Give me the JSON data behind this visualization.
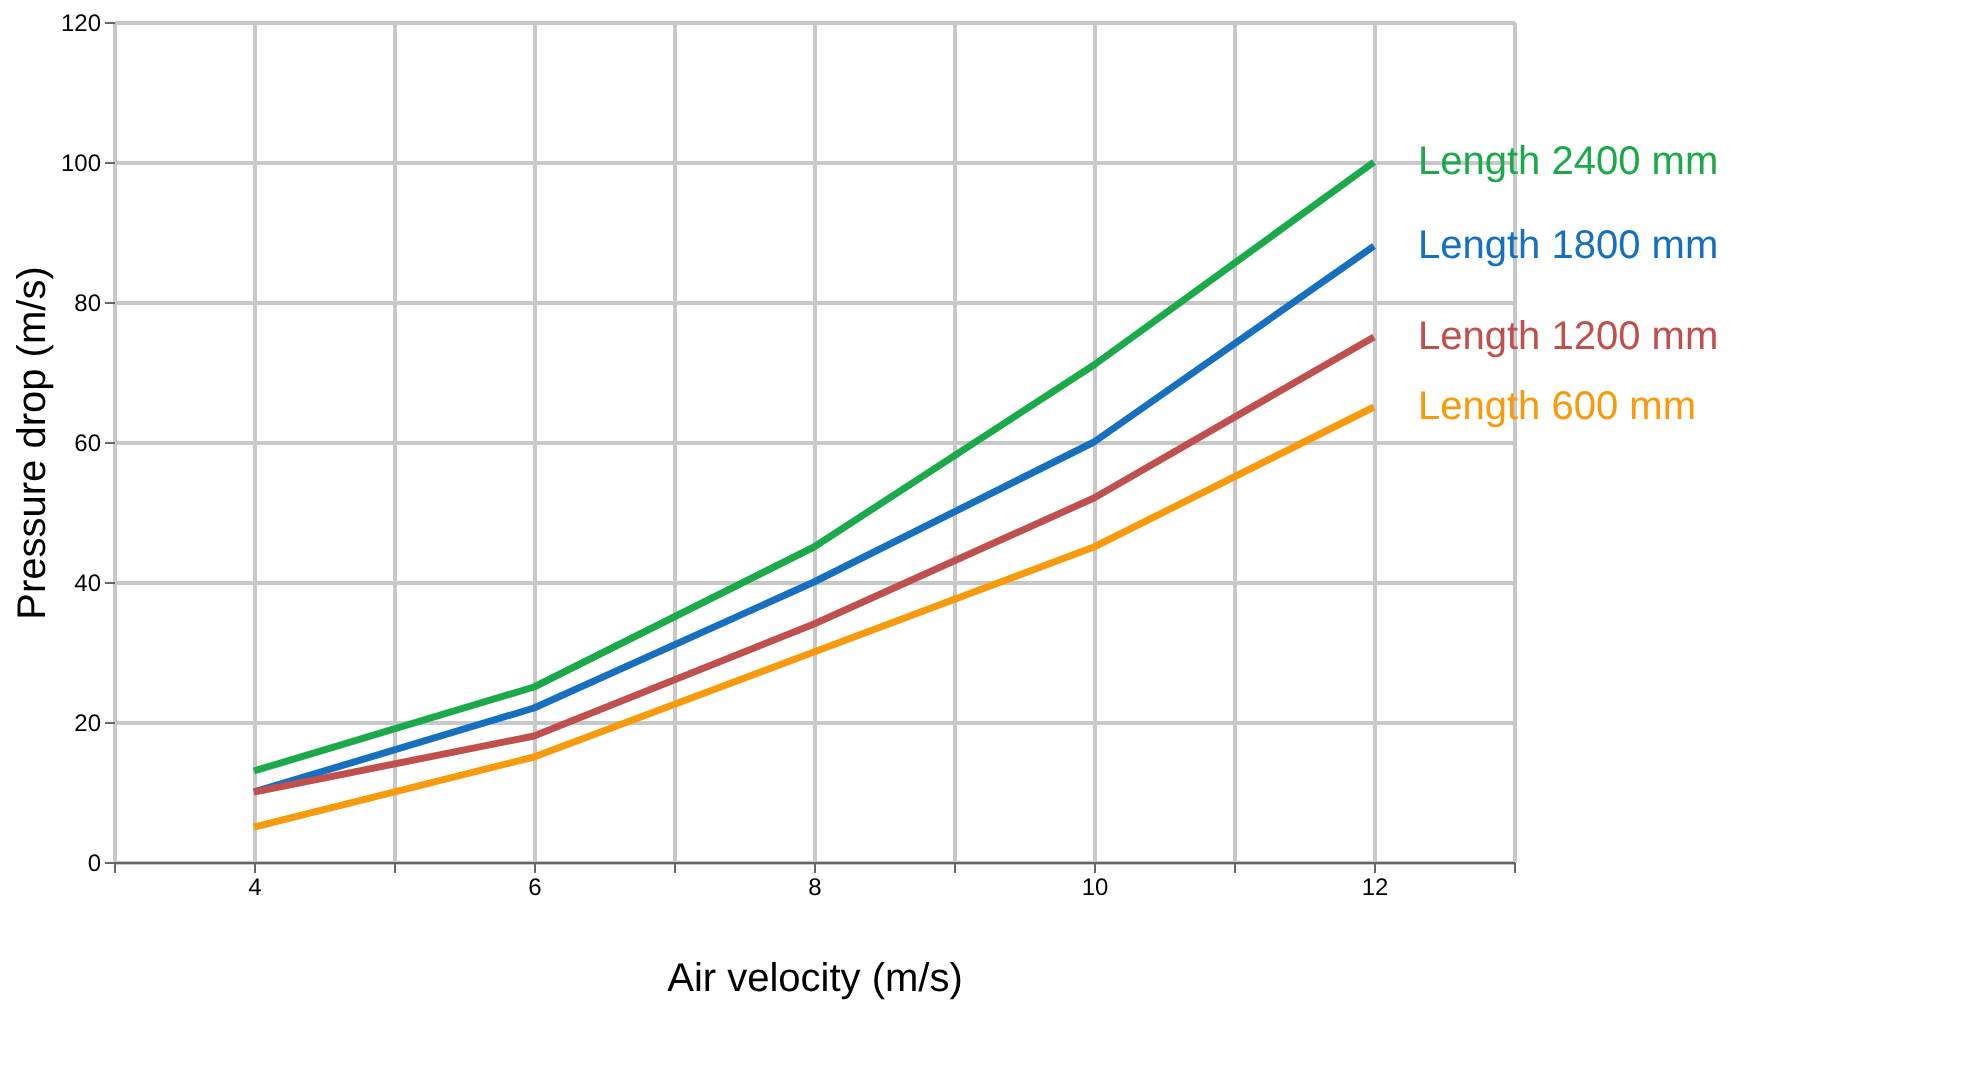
{
  "chart_data": {
    "type": "line",
    "xlabel": "Air velocity (m/s)",
    "ylabel": "Pressure drop (m/s)",
    "x": [
      4,
      6,
      8,
      10,
      12
    ],
    "xlim": [
      3,
      13
    ],
    "xticks": [
      {
        "value": 3,
        "label": null
      },
      4,
      {
        "value": 5,
        "label": null
      },
      6,
      {
        "value": 7,
        "label": null
      },
      8,
      {
        "value": 9,
        "label": null
      },
      10,
      {
        "value": 11,
        "label": null
      },
      12,
      {
        "value": 13,
        "label": null
      }
    ],
    "ylim": [
      0,
      120
    ],
    "yticks": [
      0,
      20,
      40,
      60,
      80,
      100,
      120
    ],
    "grid": true,
    "legend": "right",
    "marker": "none",
    "line_style": "solid",
    "series": [
      {
        "name": "Length 2400 mm",
        "color": "#1aaa4a",
        "values": [
          13,
          25,
          45,
          71,
          100
        ]
      },
      {
        "name": "Length 1800 mm",
        "color": "#1670bf",
        "values": [
          10,
          22,
          40,
          60,
          88
        ]
      },
      {
        "name": "Length 1200 mm",
        "color": "#c0504d",
        "values": [
          10,
          18,
          34,
          52,
          75
        ]
      },
      {
        "name": "Length 600 mm",
        "color": "#f79a0c",
        "values": [
          5,
          15,
          30,
          45,
          65
        ]
      }
    ]
  }
}
